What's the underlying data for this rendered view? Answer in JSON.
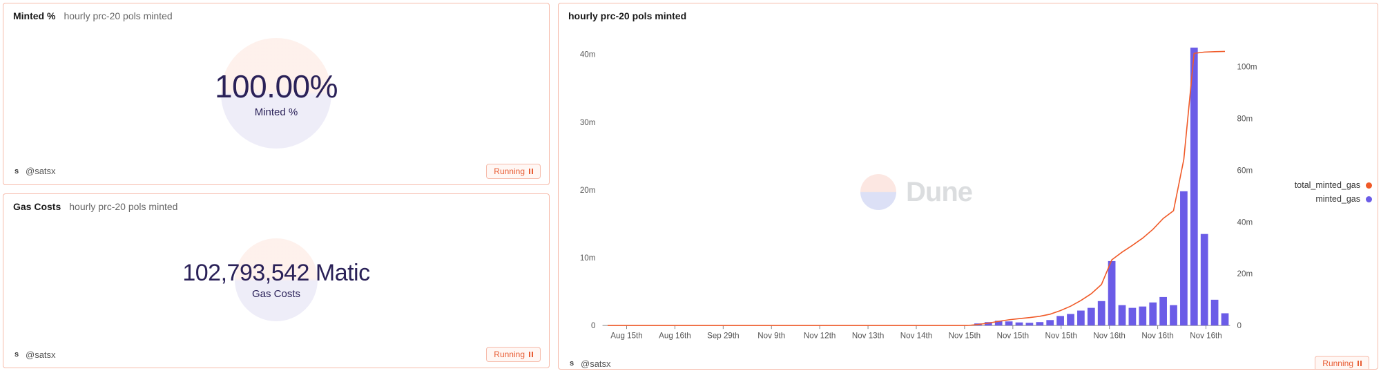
{
  "panels": {
    "minted_pct": {
      "title": "Minted %",
      "subtitle": "hourly prc-20 pols minted",
      "value": "100.00%",
      "value_label": "Minted %",
      "author": "@satsx",
      "status": "Running",
      "value_color": "#2a2158",
      "circle_top_color": "#fde9e2",
      "circle_bottom_color": "#e5e3f5"
    },
    "gas_costs": {
      "title": "Gas Costs",
      "subtitle": "hourly prc-20 pols minted",
      "value": "102,793,542 Matic",
      "value_label": "Gas Costs",
      "author": "@satsx",
      "status": "Running",
      "value_color": "#2a2158"
    },
    "chart": {
      "title": "hourly prc-20 pols minted",
      "author": "@satsx",
      "status": "Running",
      "watermark_text": "Dune",
      "legend": [
        {
          "label": "total_minted_gas",
          "color": "#f05a28"
        },
        {
          "label": "minted_gas",
          "color": "#6b5ce7"
        }
      ],
      "y_left": {
        "min": 0,
        "max": 42000000,
        "ticks": [
          0,
          10000000,
          20000000,
          30000000,
          40000000
        ],
        "tick_labels": [
          "0",
          "10m",
          "20m",
          "30m",
          "40m"
        ]
      },
      "y_right": {
        "min": 0,
        "max": 110000000,
        "ticks": [
          0,
          20000000,
          40000000,
          60000000,
          80000000,
          100000000
        ],
        "tick_labels": [
          "0",
          "20m",
          "40m",
          "60m",
          "80m",
          "100m"
        ]
      },
      "x_labels": [
        "Aug 15th",
        "Aug 16th",
        "Sep 29th",
        "Nov 9th",
        "Nov 12th",
        "Nov 13th",
        "Nov 14th",
        "Nov 15th",
        "Nov 15th",
        "Nov 15th",
        "Nov 16th",
        "Nov 16th",
        "Nov 16th"
      ],
      "bar_color": "#6b5ce7",
      "line_color": "#f05a28",
      "bars": [
        0,
        0,
        0,
        0,
        0,
        0,
        0,
        0,
        0,
        0,
        0,
        0,
        0,
        0,
        0,
        0,
        0,
        0,
        0,
        0,
        0,
        0,
        0,
        0,
        0,
        0,
        0,
        0,
        0,
        0,
        0,
        0,
        0,
        0,
        0,
        0,
        300000,
        500000,
        700000,
        600000,
        450000,
        400000,
        500000,
        800000,
        1400000,
        1700000,
        2200000,
        2600000,
        3600000,
        9500000,
        3000000,
        2600000,
        2800000,
        3400000,
        4200000,
        3000000,
        19800000,
        41000000,
        13500000,
        3800000,
        1800000
      ],
      "line": [
        0,
        0,
        0,
        0,
        0,
        0,
        0,
        0,
        0,
        0,
        0,
        0,
        0,
        0,
        0,
        0,
        0,
        0,
        0,
        0,
        0,
        0,
        0,
        0,
        0,
        0,
        0,
        0,
        0,
        0,
        0,
        0,
        0,
        0,
        0,
        0,
        400000,
        900000,
        1600000,
        2200000,
        2650000,
        3050000,
        3550000,
        4350000,
        5750000,
        7450000,
        9650000,
        12250000,
        15850000,
        25350000,
        28350000,
        30950000,
        33750000,
        37150000,
        41350000,
        44350000,
        64150000,
        105150000,
        105650000,
        105800000,
        105900000
      ],
      "plot_bg": "#ffffff",
      "axis_color": "#888888",
      "tick_color": "#555555",
      "bar_width_ratio": 0.72
    }
  },
  "colors": {
    "card_border": "#f6b9a8",
    "status_text": "#e85c33",
    "status_bg": "#fff7f4"
  }
}
